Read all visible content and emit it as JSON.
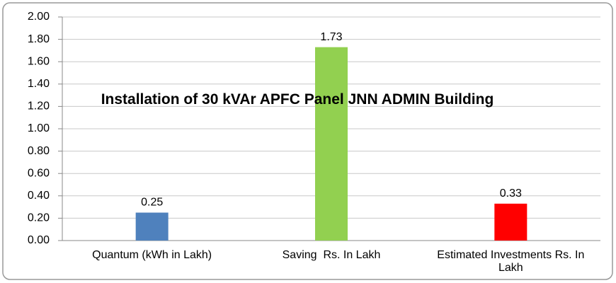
{
  "chart_data": {
    "type": "bar",
    "title": "Installation of 30 kVAr APFC Panel  JNN ADMIN Building",
    "categories": [
      "Quantum (kWh in Lakh)",
      "Saving  Rs. In Lakh",
      "Estimated Investments Rs. In Lakh"
    ],
    "values": [
      0.25,
      1.73,
      0.33
    ],
    "colors": [
      "#4f81bd",
      "#92d050",
      "#ff0000"
    ],
    "ylim": [
      0,
      2
    ],
    "yticks": [
      {
        "value": 0,
        "label": "0.00"
      },
      {
        "value": 0.2,
        "label": "0.20"
      },
      {
        "value": 0.4,
        "label": "0.40"
      },
      {
        "value": 0.6,
        "label": "0.60"
      },
      {
        "value": 0.8,
        "label": "0.80"
      },
      {
        "value": 1.0,
        "label": "1.00"
      },
      {
        "value": 1.2,
        "label": "1.20"
      },
      {
        "value": 1.4,
        "label": "1.40"
      },
      {
        "value": 1.6,
        "label": "1.60"
      },
      {
        "value": 1.8,
        "label": "1.80"
      },
      {
        "value": 2.0,
        "label": "2.00"
      }
    ],
    "grid": true
  }
}
